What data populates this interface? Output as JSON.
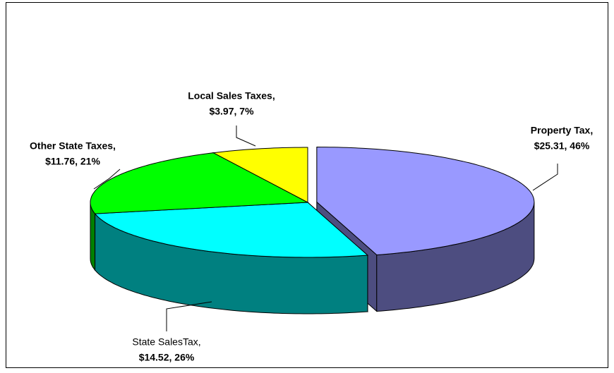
{
  "chart_data": {
    "type": "pie",
    "three_d": true,
    "categories": [
      "Property Tax,",
      "State SalesTax,",
      "Other State Taxes,",
      "Local Sales Taxes,"
    ],
    "values": [
      25.31,
      14.52,
      11.76,
      3.97
    ],
    "value_labels": [
      "$25.31, 46%",
      "$14.52, 26%",
      "$11.76, 21%",
      "$3.97, 7%"
    ],
    "colors": [
      "#9999ff",
      "#00ffff",
      "#00ff00",
      "#ffff00"
    ],
    "side_colors": [
      "#4d4d80",
      "#008080",
      "#008000",
      "#808000"
    ],
    "exploded": [
      true,
      false,
      false,
      false
    ]
  }
}
